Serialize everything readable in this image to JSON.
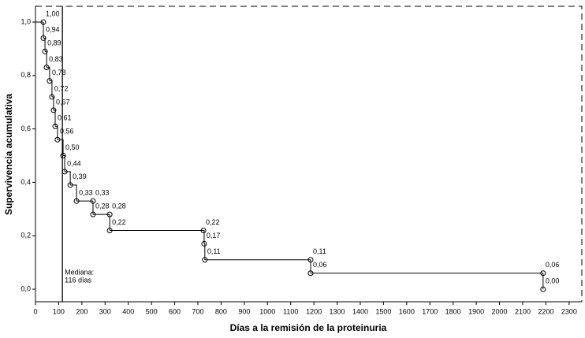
{
  "chart_data": {
    "type": "step",
    "x_label": "Días a la remisión de la proteinuria",
    "y_label": "Supervivencia acumulativa",
    "x": [
      34,
      34,
      41,
      48,
      61,
      71,
      78,
      85,
      95,
      119,
      126,
      150,
      177,
      248,
      248,
      320,
      320,
      724,
      727,
      730,
      1186,
      1186,
      2188,
      2188
    ],
    "values": [
      1.0,
      0.94,
      0.89,
      0.83,
      0.78,
      0.72,
      0.67,
      0.61,
      0.56,
      0.5,
      0.44,
      0.39,
      0.33,
      0.33,
      0.28,
      0.28,
      0.22,
      0.22,
      0.17,
      0.11,
      0.11,
      0.06,
      0.06,
      0.0
    ],
    "value_labels": [
      "1,00",
      "0,94",
      "0,89",
      "0,83",
      "0,78",
      "0,72",
      "0,67",
      "0,61",
      "0,56",
      "0,50",
      "0,44",
      "0,39",
      "0,33",
      "0,33",
      "0,28",
      "0,28",
      "0,22",
      "0,22",
      "0,17",
      "0,11",
      "0,11",
      "0,06",
      "0,06",
      "0,00"
    ],
    "color": "#000000",
    "median": 116,
    "median_label": [
      "Mediana:",
      "116 días"
    ],
    "xlim": [
      0,
      2355
    ],
    "ylim": [
      -0.047,
      1.059
    ],
    "xticks": [
      0,
      100,
      200,
      300,
      400,
      500,
      600,
      700,
      800,
      900,
      1000,
      1100,
      1200,
      1300,
      1400,
      1500,
      1600,
      1700,
      1800,
      1900,
      2000,
      2100,
      2200,
      2300
    ],
    "yticks": [
      {
        "value": 0,
        "label": "0,0"
      },
      {
        "value": 0.2,
        "label": "0,2"
      },
      {
        "value": 0.4,
        "label": "0,4"
      },
      {
        "value": 0.6,
        "label": "0,6"
      },
      {
        "value": 0.8,
        "label": "0,8"
      },
      {
        "value": 1,
        "label": "1,0"
      }
    ]
  }
}
